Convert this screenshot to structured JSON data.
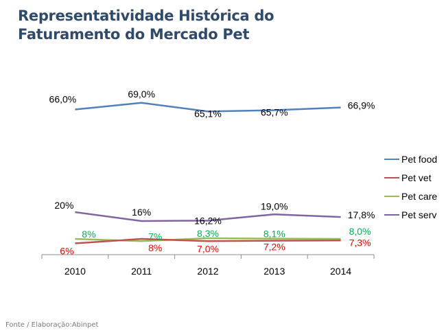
{
  "title_lines": [
    "Representatividade Histórica do",
    "Faturamento  do Mercado Pet"
  ],
  "footer": "Fonte /  Elaboração:Abinpet",
  "chart_data": {
    "type": "line",
    "title": "Representatividade Histórica do Faturamento do Mercado Pet",
    "xlabel": "",
    "ylabel": "",
    "categories": [
      "2010",
      "2011",
      "2012",
      "2013",
      "2014"
    ],
    "ylim": [
      0,
      100
    ],
    "grid": false,
    "legend_position": "right",
    "series": [
      {
        "name": "Pet food",
        "color": "#4f81bd",
        "label_color": "#000000",
        "values": [
          66.0,
          69.0,
          65.1,
          65.7,
          66.9
        ],
        "labels": [
          "66,0%",
          "69,0%",
          "65,1%",
          "65,7%",
          "66,9%"
        ]
      },
      {
        "name": "Pet vet",
        "color": "#c0504d",
        "label_color": "#ff0000",
        "values": [
          6.0,
          8.0,
          7.0,
          7.2,
          7.3
        ],
        "labels": [
          "6%",
          "8%",
          "7,0%",
          "7,2%",
          "7,3%"
        ]
      },
      {
        "name": "Pet care",
        "color": "#9bbb59",
        "label_color": "#00b050",
        "values": [
          8.0,
          7.0,
          8.3,
          8.1,
          8.0
        ],
        "labels": [
          "8%",
          "7%",
          "8,3%",
          "8,1%",
          "8,0%"
        ]
      },
      {
        "name": "Pet serv",
        "color": "#8064a2",
        "label_color": "#000000",
        "values": [
          20.0,
          16.0,
          16.2,
          19.0,
          17.8
        ],
        "labels": [
          "20%",
          "16%",
          "16,2%",
          "19,0%",
          "17,8%"
        ]
      }
    ]
  }
}
